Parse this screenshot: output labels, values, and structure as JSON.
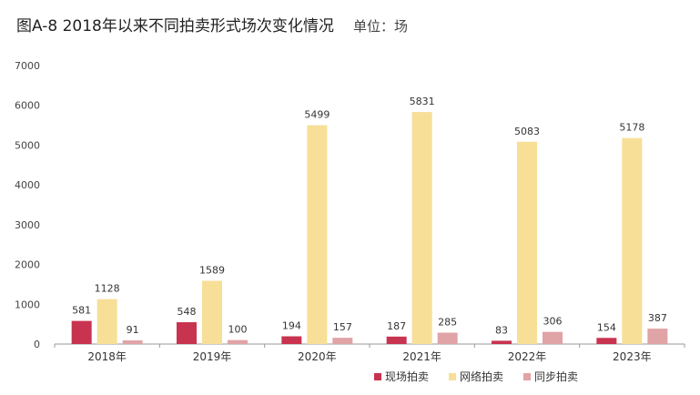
{
  "chart_data": {
    "type": "bar",
    "title": "图A-8  2018年以来不同拍卖形式场次变化情况",
    "unit": "单位：场",
    "categories": [
      "2018年",
      "2019年",
      "2020年",
      "2021年",
      "2022年",
      "2023年"
    ],
    "series": [
      {
        "name": "现场拍卖",
        "color": "#c8334f",
        "values": [
          581,
          548,
          194,
          187,
          83,
          154
        ]
      },
      {
        "name": "网络拍卖",
        "color": "#f7df97",
        "values": [
          1128,
          1589,
          5499,
          5831,
          5083,
          5178
        ]
      },
      {
        "name": "同步拍卖",
        "color": "#e0a3a6",
        "values": [
          91,
          100,
          157,
          285,
          306,
          387
        ]
      }
    ],
    "ylim": [
      0,
      7000
    ],
    "yticks": [
      0,
      1000,
      2000,
      3000,
      4000,
      5000,
      6000,
      7000
    ],
    "grid": false,
    "legend_position": "bottom-right"
  }
}
